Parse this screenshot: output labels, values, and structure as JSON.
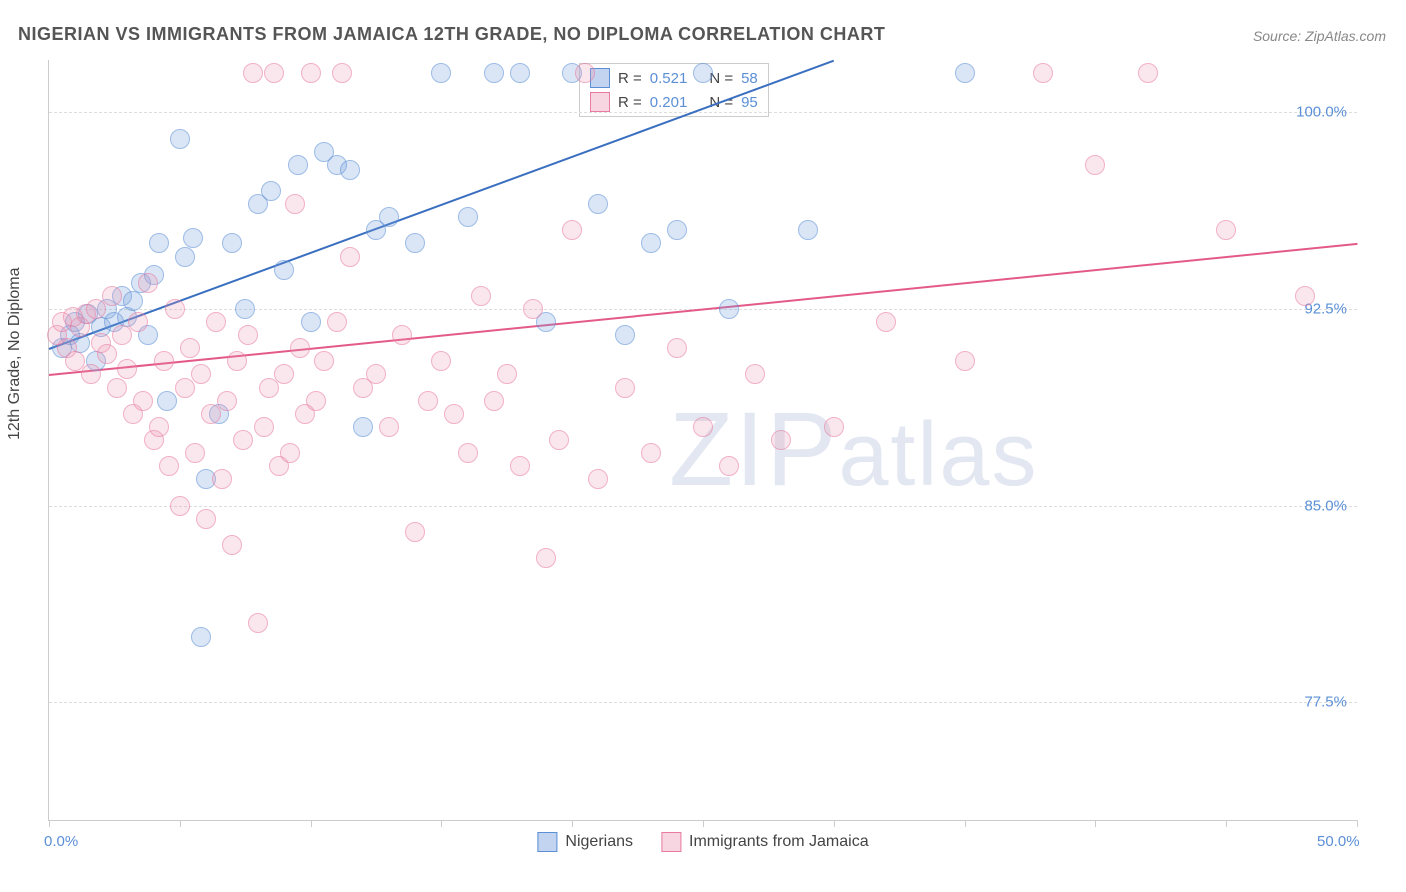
{
  "title": "NIGERIAN VS IMMIGRANTS FROM JAMAICA 12TH GRADE, NO DIPLOMA CORRELATION CHART",
  "source": "Source: ZipAtlas.com",
  "y_axis_label": "12th Grade, No Diploma",
  "watermark": "ZIPatlas",
  "chart": {
    "type": "scatter",
    "background_color": "#ffffff",
    "grid_color": "#dddddd",
    "axis_color": "#cccccc",
    "x_min": 0.0,
    "x_max": 50.0,
    "y_min": 73.0,
    "y_max": 102.0,
    "x_ticks": [
      0,
      5,
      10,
      15,
      20,
      25,
      30,
      35,
      40,
      45,
      50
    ],
    "x_labels": [
      {
        "value": 0.0,
        "text": "0.0%"
      },
      {
        "value": 50.0,
        "text": "50.0%"
      }
    ],
    "y_gridlines": [
      {
        "value": 100.0,
        "text": "100.0%"
      },
      {
        "value": 92.5,
        "text": "92.5%"
      },
      {
        "value": 85.0,
        "text": "85.0%"
      },
      {
        "value": 77.5,
        "text": "77.5%"
      }
    ],
    "series": [
      {
        "name": "Nigerians",
        "color_fill": "rgba(120,160,220,0.45)",
        "color_stroke": "#5b8fd6",
        "r_value": "0.521",
        "n_value": "58",
        "trend": {
          "x1": 0,
          "y1": 91.0,
          "x2": 30,
          "y2": 102.0,
          "color": "#3a6fc0"
        },
        "points": [
          [
            0.5,
            91.0
          ],
          [
            0.8,
            91.5
          ],
          [
            1.0,
            92.0
          ],
          [
            1.2,
            91.2
          ],
          [
            1.5,
            92.3
          ],
          [
            1.8,
            90.5
          ],
          [
            2.0,
            91.8
          ],
          [
            2.2,
            92.5
          ],
          [
            2.5,
            92.0
          ],
          [
            2.8,
            93.0
          ],
          [
            3.0,
            92.2
          ],
          [
            3.2,
            92.8
          ],
          [
            3.5,
            93.5
          ],
          [
            3.8,
            91.5
          ],
          [
            4.0,
            93.8
          ],
          [
            4.2,
            95.0
          ],
          [
            4.5,
            89.0
          ],
          [
            5.0,
            99.0
          ],
          [
            5.2,
            94.5
          ],
          [
            5.5,
            95.2
          ],
          [
            5.8,
            80.0
          ],
          [
            6.0,
            86.0
          ],
          [
            6.5,
            88.5
          ],
          [
            7.0,
            95.0
          ],
          [
            7.5,
            92.5
          ],
          [
            8.0,
            96.5
          ],
          [
            8.5,
            97.0
          ],
          [
            9.0,
            94.0
          ],
          [
            9.5,
            98.0
          ],
          [
            10.0,
            92.0
          ],
          [
            10.5,
            98.5
          ],
          [
            11.0,
            98.0
          ],
          [
            11.5,
            97.8
          ],
          [
            12.0,
            88.0
          ],
          [
            12.5,
            95.5
          ],
          [
            13.0,
            96.0
          ],
          [
            14.0,
            95.0
          ],
          [
            15.0,
            101.5
          ],
          [
            16.0,
            96.0
          ],
          [
            17.0,
            101.5
          ],
          [
            18.0,
            101.5
          ],
          [
            19.0,
            92.0
          ],
          [
            20.0,
            101.5
          ],
          [
            21.0,
            96.5
          ],
          [
            22.0,
            91.5
          ],
          [
            23.0,
            95.0
          ],
          [
            24.0,
            95.5
          ],
          [
            25.0,
            101.5
          ],
          [
            26.0,
            92.5
          ],
          [
            29.0,
            95.5
          ],
          [
            35.0,
            101.5
          ]
        ]
      },
      {
        "name": "Immigrants from Jamaica",
        "color_fill": "rgba(235,150,180,0.4)",
        "color_stroke": "#e87ca0",
        "r_value": "0.201",
        "n_value": "95",
        "trend": {
          "x1": 0,
          "y1": 90.0,
          "x2": 50,
          "y2": 95.0,
          "color": "#e35a8a"
        },
        "points": [
          [
            0.3,
            91.5
          ],
          [
            0.5,
            92.0
          ],
          [
            0.7,
            91.0
          ],
          [
            0.9,
            92.2
          ],
          [
            1.0,
            90.5
          ],
          [
            1.2,
            91.8
          ],
          [
            1.4,
            92.3
          ],
          [
            1.6,
            90.0
          ],
          [
            1.8,
            92.5
          ],
          [
            2.0,
            91.2
          ],
          [
            2.2,
            90.8
          ],
          [
            2.4,
            93.0
          ],
          [
            2.6,
            89.5
          ],
          [
            2.8,
            91.5
          ],
          [
            3.0,
            90.2
          ],
          [
            3.2,
            88.5
          ],
          [
            3.4,
            92.0
          ],
          [
            3.6,
            89.0
          ],
          [
            3.8,
            93.5
          ],
          [
            4.0,
            87.5
          ],
          [
            4.2,
            88.0
          ],
          [
            4.4,
            90.5
          ],
          [
            4.6,
            86.5
          ],
          [
            4.8,
            92.5
          ],
          [
            5.0,
            85.0
          ],
          [
            5.2,
            89.5
          ],
          [
            5.4,
            91.0
          ],
          [
            5.6,
            87.0
          ],
          [
            5.8,
            90.0
          ],
          [
            6.0,
            84.5
          ],
          [
            6.2,
            88.5
          ],
          [
            6.4,
            92.0
          ],
          [
            6.6,
            86.0
          ],
          [
            6.8,
            89.0
          ],
          [
            7.0,
            83.5
          ],
          [
            7.2,
            90.5
          ],
          [
            7.4,
            87.5
          ],
          [
            7.6,
            91.5
          ],
          [
            7.8,
            101.5
          ],
          [
            8.0,
            80.5
          ],
          [
            8.2,
            88.0
          ],
          [
            8.4,
            89.5
          ],
          [
            8.6,
            101.5
          ],
          [
            8.8,
            86.5
          ],
          [
            9.0,
            90.0
          ],
          [
            9.2,
            87.0
          ],
          [
            9.4,
            96.5
          ],
          [
            9.6,
            91.0
          ],
          [
            9.8,
            88.5
          ],
          [
            10.0,
            101.5
          ],
          [
            10.2,
            89.0
          ],
          [
            10.5,
            90.5
          ],
          [
            11.0,
            92.0
          ],
          [
            11.2,
            101.5
          ],
          [
            11.5,
            94.5
          ],
          [
            12.0,
            89.5
          ],
          [
            12.5,
            90.0
          ],
          [
            13.0,
            88.0
          ],
          [
            13.5,
            91.5
          ],
          [
            14.0,
            84.0
          ],
          [
            14.5,
            89.0
          ],
          [
            15.0,
            90.5
          ],
          [
            15.5,
            88.5
          ],
          [
            16.0,
            87.0
          ],
          [
            16.5,
            93.0
          ],
          [
            17.0,
            89.0
          ],
          [
            17.5,
            90.0
          ],
          [
            18.0,
            86.5
          ],
          [
            18.5,
            92.5
          ],
          [
            19.0,
            83.0
          ],
          [
            19.5,
            87.5
          ],
          [
            20.0,
            95.5
          ],
          [
            20.5,
            101.5
          ],
          [
            21.0,
            86.0
          ],
          [
            22.0,
            89.5
          ],
          [
            23.0,
            87.0
          ],
          [
            24.0,
            91.0
          ],
          [
            25.0,
            88.0
          ],
          [
            26.0,
            86.5
          ],
          [
            27.0,
            90.0
          ],
          [
            28.0,
            87.5
          ],
          [
            30.0,
            88.0
          ],
          [
            32.0,
            92.0
          ],
          [
            35.0,
            90.5
          ],
          [
            38.0,
            101.5
          ],
          [
            40.0,
            98.0
          ],
          [
            42.0,
            101.5
          ],
          [
            45.0,
            95.5
          ],
          [
            48.0,
            93.0
          ]
        ]
      }
    ]
  },
  "legend_top": {
    "r_prefix": "R = ",
    "n_prefix": "N = "
  },
  "legend_bottom": [
    {
      "label": "Nigerians",
      "fill": "rgba(120,160,220,0.45)",
      "stroke": "#5b8fd6"
    },
    {
      "label": "Immigrants from Jamaica",
      "fill": "rgba(235,150,180,0.4)",
      "stroke": "#e87ca0"
    }
  ]
}
